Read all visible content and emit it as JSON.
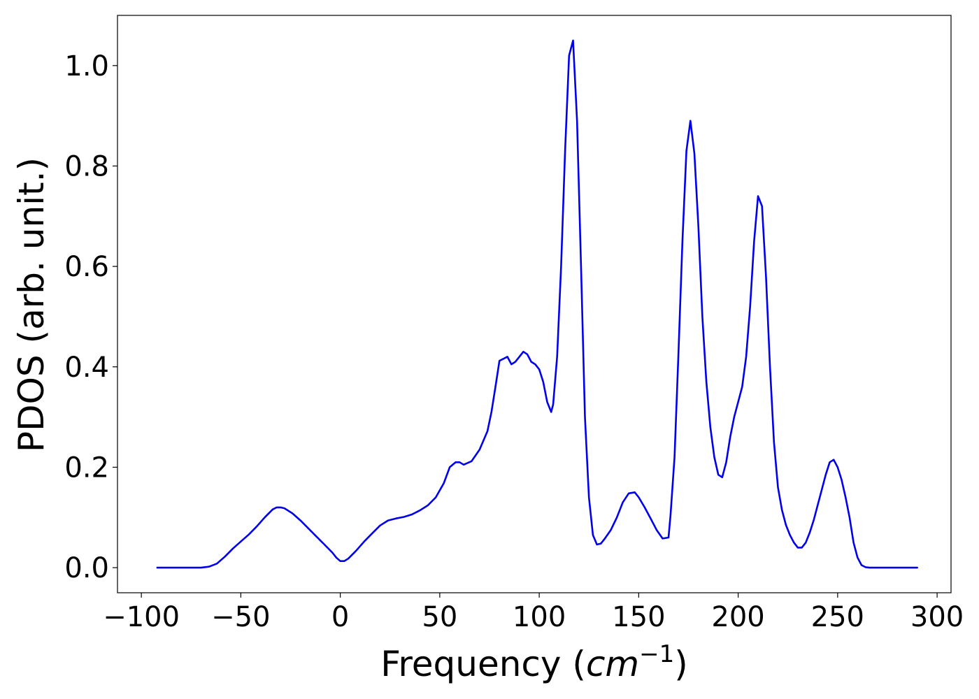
{
  "chart_data": {
    "type": "line",
    "title": "",
    "xlabel": "Frequency",
    "xlabel_unit_open": "(",
    "xlabel_unit_base": "cm",
    "xlabel_unit_exp": "−1",
    "xlabel_unit_close": ")",
    "ylabel": "PDOS (arb. unit.)",
    "xlim": [
      -112,
      307
    ],
    "ylim": [
      -0.05,
      1.1
    ],
    "xticks": [
      -100,
      -50,
      0,
      50,
      100,
      150,
      200,
      250,
      300
    ],
    "xtick_labels": [
      "−100",
      "−50",
      "0",
      "50",
      "100",
      "150",
      "200",
      "250",
      "300"
    ],
    "yticks": [
      0.0,
      0.2,
      0.4,
      0.6,
      0.8,
      1.0
    ],
    "ytick_labels": [
      "0.0",
      "0.2",
      "0.4",
      "0.6",
      "0.8",
      "1.0"
    ],
    "grid": false,
    "legend": "none",
    "series": [
      {
        "color": "#0000ee",
        "x": [
          -92,
          -70,
          -66,
          -62,
          -58,
          -54,
          -50,
          -46,
          -42,
          -38,
          -34,
          -32,
          -30,
          -28,
          -24,
          -20,
          -16,
          -12,
          -8,
          -4,
          -2,
          0,
          2,
          4,
          8,
          12,
          16,
          20,
          24,
          28,
          32,
          36,
          40,
          44,
          48,
          52,
          55,
          58,
          60,
          62,
          66,
          70,
          74,
          76,
          78,
          80,
          84,
          86,
          88,
          90,
          92,
          94,
          96,
          98,
          100,
          102,
          104,
          106,
          107,
          109,
          111,
          113,
          115,
          117,
          119,
          121,
          123,
          125,
          127,
          129,
          131,
          133,
          136,
          139,
          142,
          145,
          148,
          150,
          153,
          156,
          159,
          162,
          165,
          166,
          168,
          170,
          172,
          174,
          176,
          178,
          180,
          182,
          184,
          186,
          188,
          190,
          192,
          194,
          196,
          198,
          200,
          202,
          204,
          206,
          208,
          210,
          212,
          214,
          216,
          218,
          220,
          222,
          224,
          226,
          228,
          230,
          232,
          234,
          236,
          238,
          240,
          242,
          244,
          246,
          248,
          250,
          252,
          254,
          256,
          258,
          260,
          262,
          264,
          266,
          270,
          290
        ],
        "y": [
          0.0,
          0.0,
          0.002,
          0.008,
          0.022,
          0.038,
          0.052,
          0.066,
          0.082,
          0.1,
          0.116,
          0.12,
          0.12,
          0.118,
          0.108,
          0.094,
          0.078,
          0.062,
          0.046,
          0.03,
          0.02,
          0.013,
          0.013,
          0.018,
          0.034,
          0.052,
          0.068,
          0.084,
          0.094,
          0.098,
          0.101,
          0.106,
          0.114,
          0.124,
          0.14,
          0.168,
          0.2,
          0.21,
          0.21,
          0.205,
          0.212,
          0.235,
          0.272,
          0.31,
          0.36,
          0.412,
          0.42,
          0.405,
          0.41,
          0.42,
          0.43,
          0.425,
          0.41,
          0.405,
          0.395,
          0.37,
          0.33,
          0.31,
          0.325,
          0.42,
          0.6,
          0.83,
          1.02,
          1.05,
          0.89,
          0.6,
          0.3,
          0.14,
          0.065,
          0.046,
          0.048,
          0.058,
          0.075,
          0.1,
          0.13,
          0.148,
          0.15,
          0.14,
          0.12,
          0.098,
          0.075,
          0.058,
          0.06,
          0.105,
          0.22,
          0.43,
          0.65,
          0.83,
          0.89,
          0.825,
          0.68,
          0.5,
          0.37,
          0.28,
          0.22,
          0.185,
          0.18,
          0.21,
          0.26,
          0.3,
          0.33,
          0.36,
          0.42,
          0.52,
          0.65,
          0.74,
          0.72,
          0.58,
          0.4,
          0.25,
          0.16,
          0.115,
          0.085,
          0.065,
          0.05,
          0.04,
          0.04,
          0.05,
          0.07,
          0.095,
          0.125,
          0.155,
          0.185,
          0.21,
          0.215,
          0.2,
          0.175,
          0.14,
          0.1,
          0.05,
          0.02,
          0.005,
          0.001,
          0.0,
          0.0,
          0.0
        ]
      }
    ]
  }
}
